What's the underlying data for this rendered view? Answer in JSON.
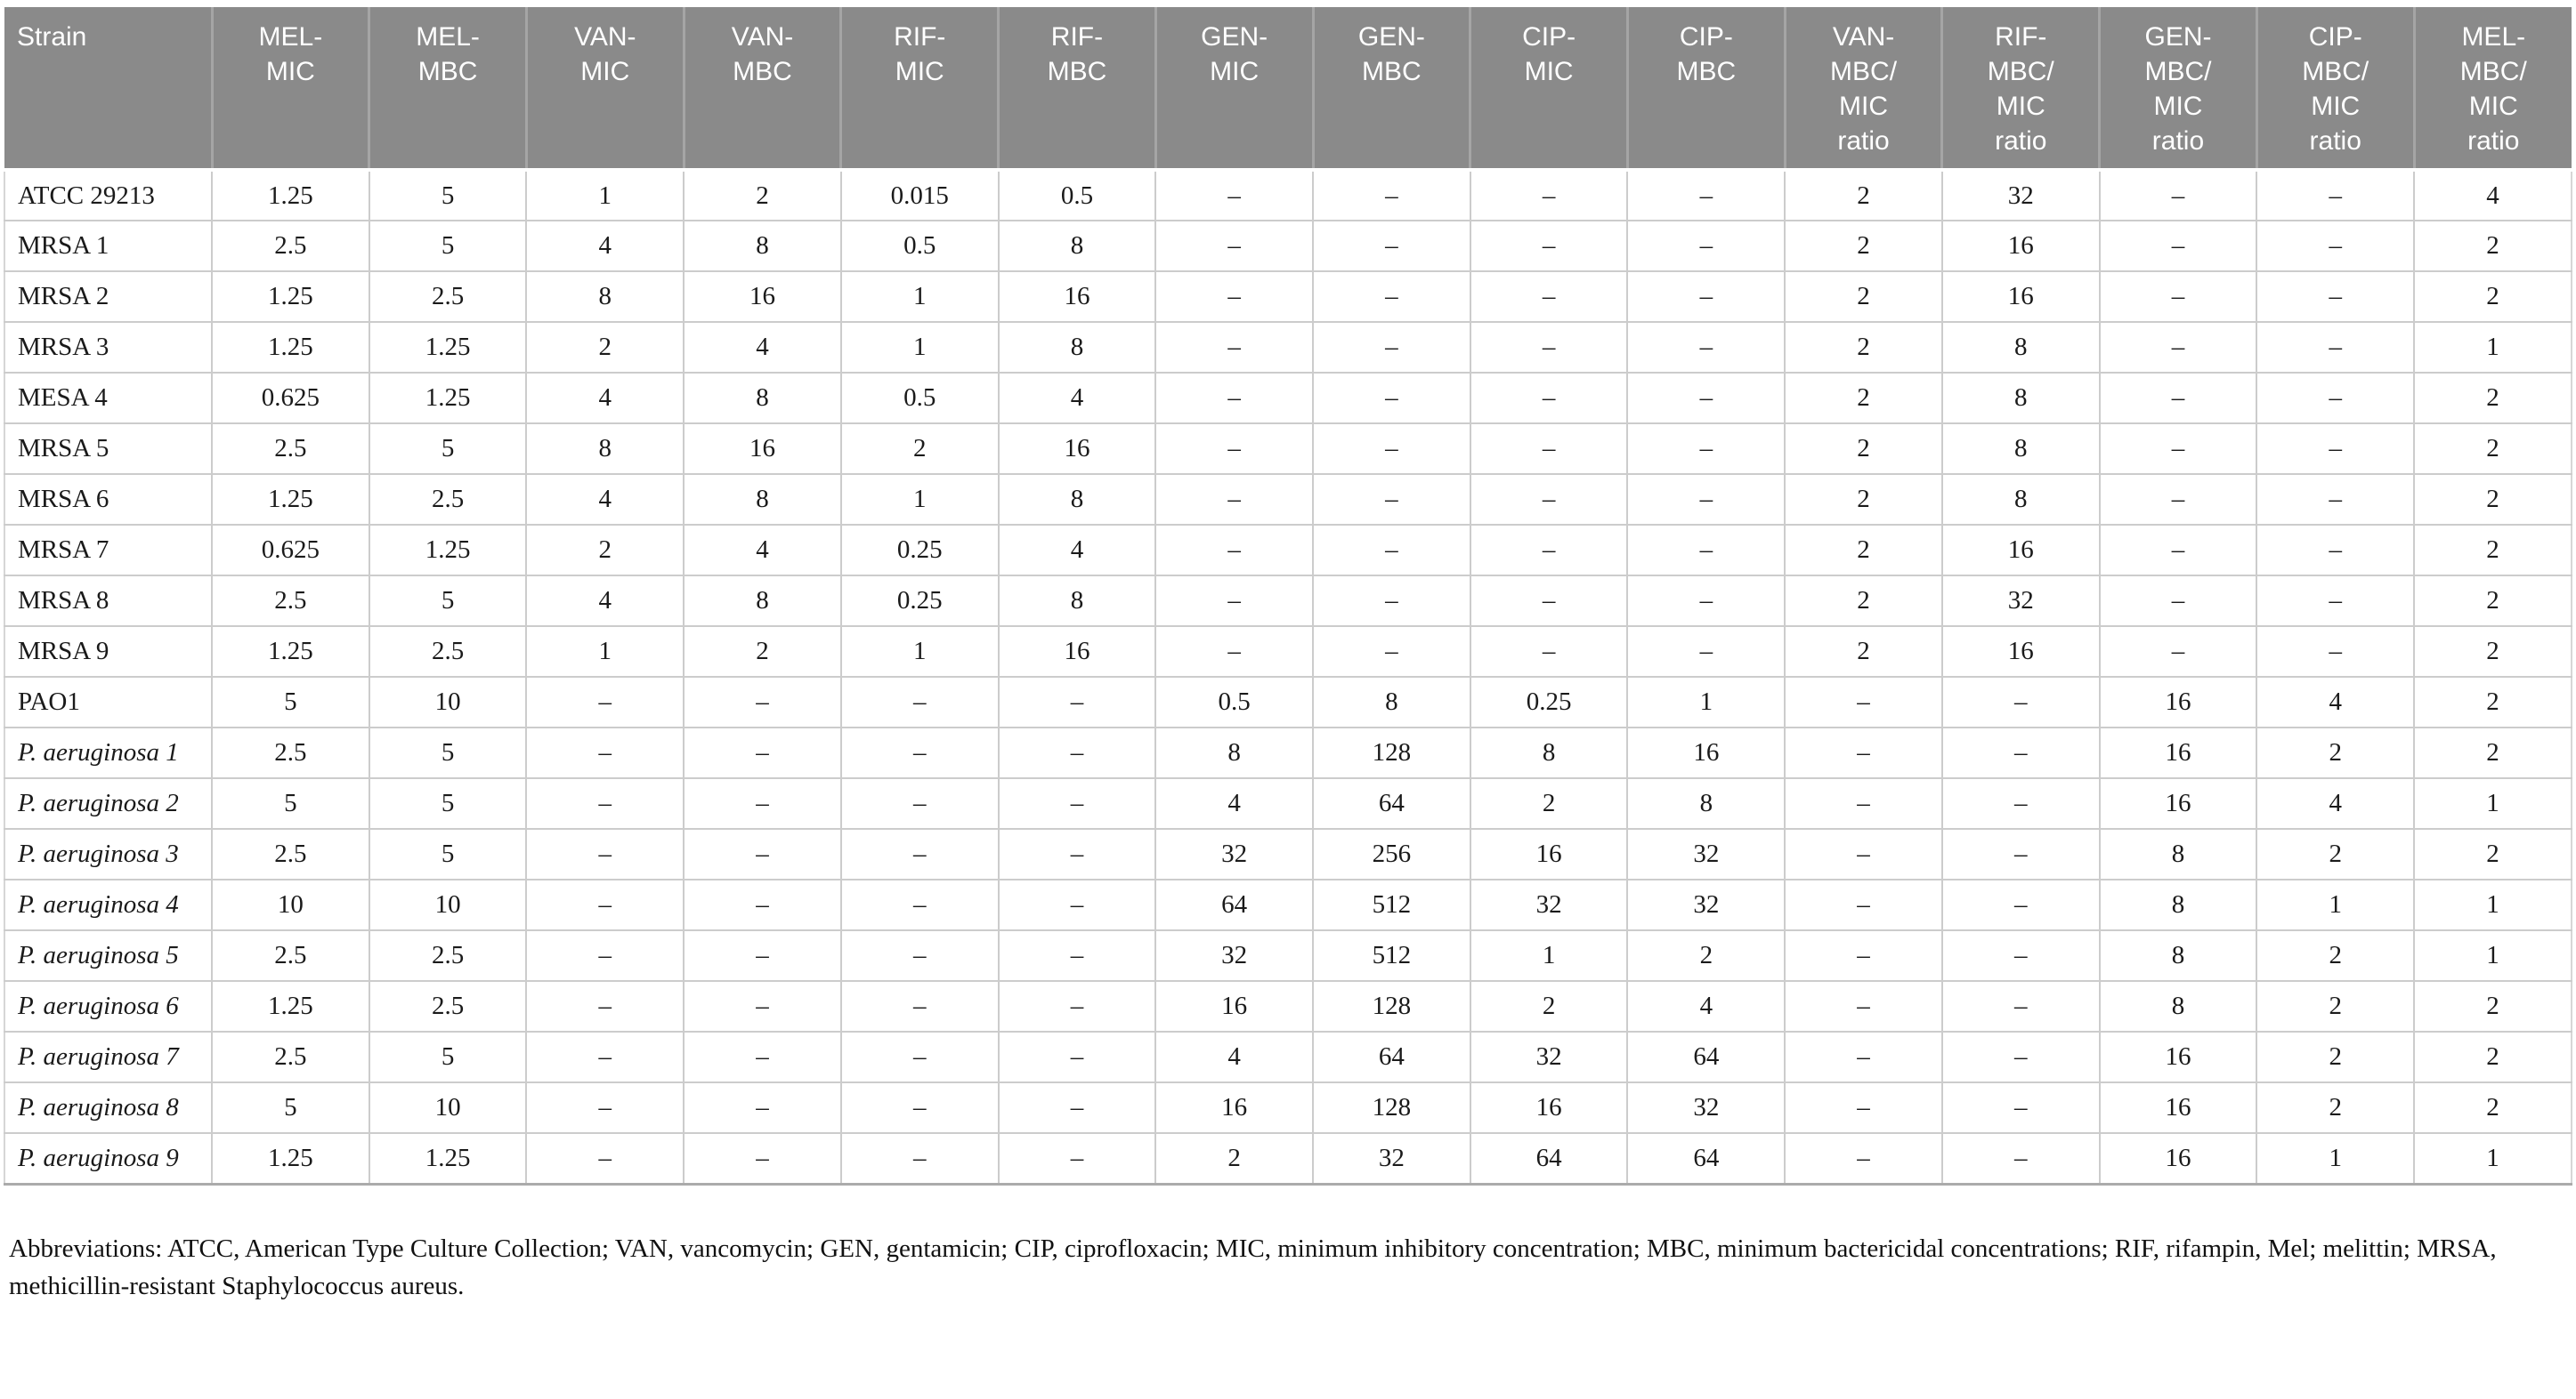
{
  "colors": {
    "header_background": "#8a8a8a",
    "header_text": "#ffffff",
    "body_text": "#1a1a1a",
    "grid_line": "#cccccc",
    "header_divider": "#a5a5a5"
  },
  "table": {
    "columns": [
      "Strain",
      "MEL-\nMIC",
      "MEL-\nMBC",
      "VAN-\nMIC",
      "VAN-\nMBC",
      "RIF-\nMIC",
      "RIF-\nMBC",
      "GEN-\nMIC",
      "GEN-\nMBC",
      "CIP-\nMIC",
      "CIP-\nMBC",
      "VAN-\nMBC/\nMIC\nratio",
      "RIF-\nMBC/\nMIC\nratio",
      "GEN-\nMBC/\nMIC\nratio",
      "CIP-\nMBC/\nMIC\nratio",
      "MEL-\nMBC/\nMIC\nratio"
    ],
    "rows": [
      {
        "strain": "ATCC 29213",
        "italic": false,
        "values": [
          "1.25",
          "5",
          "1",
          "2",
          "0.015",
          "0.5",
          "–",
          "–",
          "–",
          "–",
          "2",
          "32",
          "–",
          "–",
          "4"
        ]
      },
      {
        "strain": "MRSA 1",
        "italic": false,
        "values": [
          "2.5",
          "5",
          "4",
          "8",
          "0.5",
          "8",
          "–",
          "–",
          "–",
          "–",
          "2",
          "16",
          "–",
          "–",
          "2"
        ]
      },
      {
        "strain": "MRSA 2",
        "italic": false,
        "values": [
          "1.25",
          "2.5",
          "8",
          "16",
          "1",
          "16",
          "–",
          "–",
          "–",
          "–",
          "2",
          "16",
          "–",
          "–",
          "2"
        ]
      },
      {
        "strain": "MRSA 3",
        "italic": false,
        "values": [
          "1.25",
          "1.25",
          "2",
          "4",
          "1",
          "8",
          "–",
          "–",
          "–",
          "–",
          "2",
          "8",
          "–",
          "–",
          "1"
        ]
      },
      {
        "strain": "MESA 4",
        "italic": false,
        "values": [
          "0.625",
          "1.25",
          "4",
          "8",
          "0.5",
          "4",
          "–",
          "–",
          "–",
          "–",
          "2",
          "8",
          "–",
          "–",
          "2"
        ]
      },
      {
        "strain": "MRSA 5",
        "italic": false,
        "values": [
          "2.5",
          "5",
          "8",
          "16",
          "2",
          "16",
          "–",
          "–",
          "–",
          "–",
          "2",
          "8",
          "–",
          "–",
          "2"
        ]
      },
      {
        "strain": "MRSA 6",
        "italic": false,
        "values": [
          "1.25",
          "2.5",
          "4",
          "8",
          "1",
          "8",
          "–",
          "–",
          "–",
          "–",
          "2",
          "8",
          "–",
          "–",
          "2"
        ]
      },
      {
        "strain": "MRSA 7",
        "italic": false,
        "values": [
          "0.625",
          "1.25",
          "2",
          "4",
          "0.25",
          "4",
          "–",
          "–",
          "–",
          "–",
          "2",
          "16",
          "–",
          "–",
          "2"
        ]
      },
      {
        "strain": "MRSA 8",
        "italic": false,
        "values": [
          "2.5",
          "5",
          "4",
          "8",
          "0.25",
          "8",
          "–",
          "–",
          "–",
          "–",
          "2",
          "32",
          "–",
          "–",
          "2"
        ]
      },
      {
        "strain": "MRSA 9",
        "italic": false,
        "values": [
          "1.25",
          "2.5",
          "1",
          "2",
          "1",
          "16",
          "–",
          "–",
          "–",
          "–",
          "2",
          "16",
          "–",
          "–",
          "2"
        ]
      },
      {
        "strain": "PAO1",
        "italic": false,
        "values": [
          "5",
          "10",
          "–",
          "–",
          "–",
          "–",
          "0.5",
          "8",
          "0.25",
          "1",
          "–",
          "–",
          "16",
          "4",
          "2"
        ]
      },
      {
        "strain": "P. aeruginosa 1",
        "italic": true,
        "values": [
          "2.5",
          "5",
          "–",
          "–",
          "–",
          "–",
          "8",
          "128",
          "8",
          "16",
          "–",
          "–",
          "16",
          "2",
          "2"
        ]
      },
      {
        "strain": "P. aeruginosa 2",
        "italic": true,
        "values": [
          "5",
          "5",
          "–",
          "–",
          "–",
          "–",
          "4",
          "64",
          "2",
          "8",
          "–",
          "–",
          "16",
          "4",
          "1"
        ]
      },
      {
        "strain": "P. aeruginosa 3",
        "italic": true,
        "values": [
          "2.5",
          "5",
          "–",
          "–",
          "–",
          "–",
          "32",
          "256",
          "16",
          "32",
          "–",
          "–",
          "8",
          "2",
          "2"
        ]
      },
      {
        "strain": "P. aeruginosa 4",
        "italic": true,
        "values": [
          "10",
          "10",
          "–",
          "–",
          "–",
          "–",
          "64",
          "512",
          "32",
          "32",
          "–",
          "–",
          "8",
          "1",
          "1"
        ]
      },
      {
        "strain": "P. aeruginosa 5",
        "italic": true,
        "values": [
          "2.5",
          "2.5",
          "–",
          "–",
          "–",
          "–",
          "32",
          "512",
          "1",
          "2",
          "–",
          "–",
          "8",
          "2",
          "1"
        ]
      },
      {
        "strain": "P. aeruginosa 6",
        "italic": true,
        "values": [
          "1.25",
          "2.5",
          "–",
          "–",
          "–",
          "–",
          "16",
          "128",
          "2",
          "4",
          "–",
          "–",
          "8",
          "2",
          "2"
        ]
      },
      {
        "strain": "P. aeruginosa 7",
        "italic": true,
        "values": [
          "2.5",
          "5",
          "–",
          "–",
          "–",
          "–",
          "4",
          "64",
          "32",
          "64",
          "–",
          "–",
          "16",
          "2",
          "2"
        ]
      },
      {
        "strain": "P. aeruginosa 8",
        "italic": true,
        "values": [
          "5",
          "10",
          "–",
          "–",
          "–",
          "–",
          "16",
          "128",
          "16",
          "32",
          "–",
          "–",
          "16",
          "2",
          "2"
        ]
      },
      {
        "strain": "P. aeruginosa 9",
        "italic": true,
        "values": [
          "1.25",
          "1.25",
          "–",
          "–",
          "–",
          "–",
          "2",
          "32",
          "64",
          "64",
          "–",
          "–",
          "16",
          "1",
          "1"
        ]
      }
    ]
  },
  "footnote": {
    "text": "Abbreviations: ATCC, American Type Culture Collection; VAN, vancomycin; GEN, gentamicin; CIP, ciprofloxacin; MIC, minimum inhibitory concentration; MBC, minimum bactericidal concentrations; RIF, rifampin, Mel; melittin; MRSA, methicillin-resistant Staphylococcus aureus."
  }
}
